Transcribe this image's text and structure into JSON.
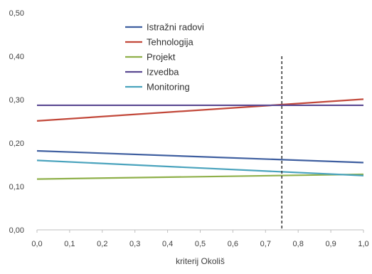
{
  "chart_data": {
    "type": "line",
    "xlabel": "kriterij Okoliš",
    "ylabel": "",
    "x": [
      0.0,
      1.0
    ],
    "xlim": [
      0.0,
      1.0
    ],
    "ylim": [
      0.0,
      0.5
    ],
    "x_ticks": [
      "0,0",
      "0,1",
      "0,2",
      "0,3",
      "0,4",
      "0,5",
      "0,6",
      "0,7",
      "0,8",
      "0,9",
      "1,0"
    ],
    "y_ticks": [
      "0,00",
      "0,10",
      "0,20",
      "0,30",
      "0,40",
      "0,50"
    ],
    "y_tick_values": [
      0.0,
      0.1,
      0.2,
      0.3,
      0.4,
      0.5
    ],
    "grid": false,
    "legend_position": "top-center",
    "reference_line": {
      "x": 0.75,
      "style": "dashed"
    },
    "series": [
      {
        "name": "Istražni radovi",
        "color": "#3f5fa0",
        "values": [
          0.182,
          0.155
        ]
      },
      {
        "name": "Tehnologija",
        "color": "#c2483a",
        "values": [
          0.251,
          0.301
        ]
      },
      {
        "name": "Projekt",
        "color": "#8fb04a",
        "values": [
          0.117,
          0.128
        ]
      },
      {
        "name": "Izvedba",
        "color": "#5b4a92",
        "values": [
          0.287,
          0.287
        ]
      },
      {
        "name": "Monitoring",
        "color": "#4aa3bd",
        "values": [
          0.16,
          0.125
        ]
      }
    ]
  }
}
